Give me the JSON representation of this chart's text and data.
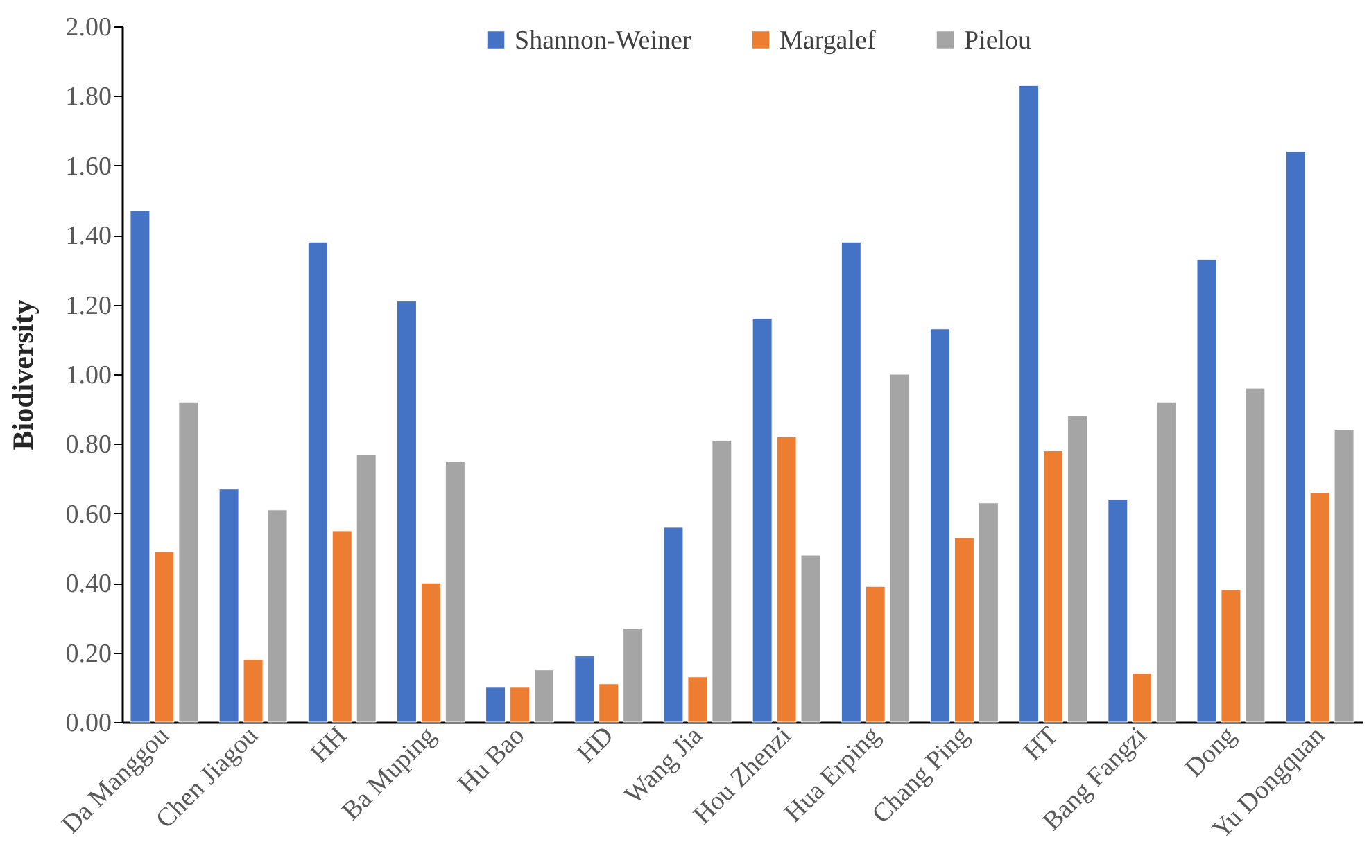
{
  "chart_data": {
    "type": "bar",
    "ylabel": "Biodiversity",
    "categories": [
      "Da Manggou",
      "Chen Jiagou",
      "HH",
      "Ba Muping",
      "Hu Bao",
      "HD",
      "Wang Jia",
      "Hou Zhenzi",
      "Hua Erping",
      "Chang Ping",
      "HT",
      "Bang Fangzi",
      "Dong",
      "Yu Dongquan"
    ],
    "series": [
      {
        "name": "Shannon-Weiner",
        "color": "#4472c4",
        "values": [
          1.47,
          0.67,
          1.38,
          1.21,
          0.1,
          0.19,
          0.56,
          1.16,
          1.38,
          1.13,
          1.83,
          0.64,
          1.33,
          1.64
        ]
      },
      {
        "name": "Margalef",
        "color": "#ed7d31",
        "values": [
          0.49,
          0.18,
          0.55,
          0.4,
          0.1,
          0.11,
          0.13,
          0.82,
          0.39,
          0.53,
          0.78,
          0.14,
          0.38,
          0.66
        ]
      },
      {
        "name": "Pielou",
        "color": "#a5a5a5",
        "values": [
          0.92,
          0.61,
          0.77,
          0.75,
          0.15,
          0.27,
          0.81,
          0.48,
          1.0,
          0.63,
          0.88,
          0.92,
          0.96,
          0.84
        ]
      }
    ],
    "ylim": [
      0,
      2
    ],
    "yticks": [
      {
        "value": 0,
        "label": "0.00"
      },
      {
        "value": 0.2,
        "label": "0.20"
      },
      {
        "value": 0.4,
        "label": "0.40"
      },
      {
        "value": 0.6,
        "label": "0.60"
      },
      {
        "value": 0.8,
        "label": "0.80"
      },
      {
        "value": 1,
        "label": "1.00"
      },
      {
        "value": 1.2,
        "label": "1.20"
      },
      {
        "value": 1.4,
        "label": "1.40"
      },
      {
        "value": 1.6,
        "label": "1.60"
      },
      {
        "value": 1.8,
        "label": "1.80"
      },
      {
        "value": 2,
        "label": "2.00"
      }
    ],
    "grid": false,
    "legend": "top"
  }
}
